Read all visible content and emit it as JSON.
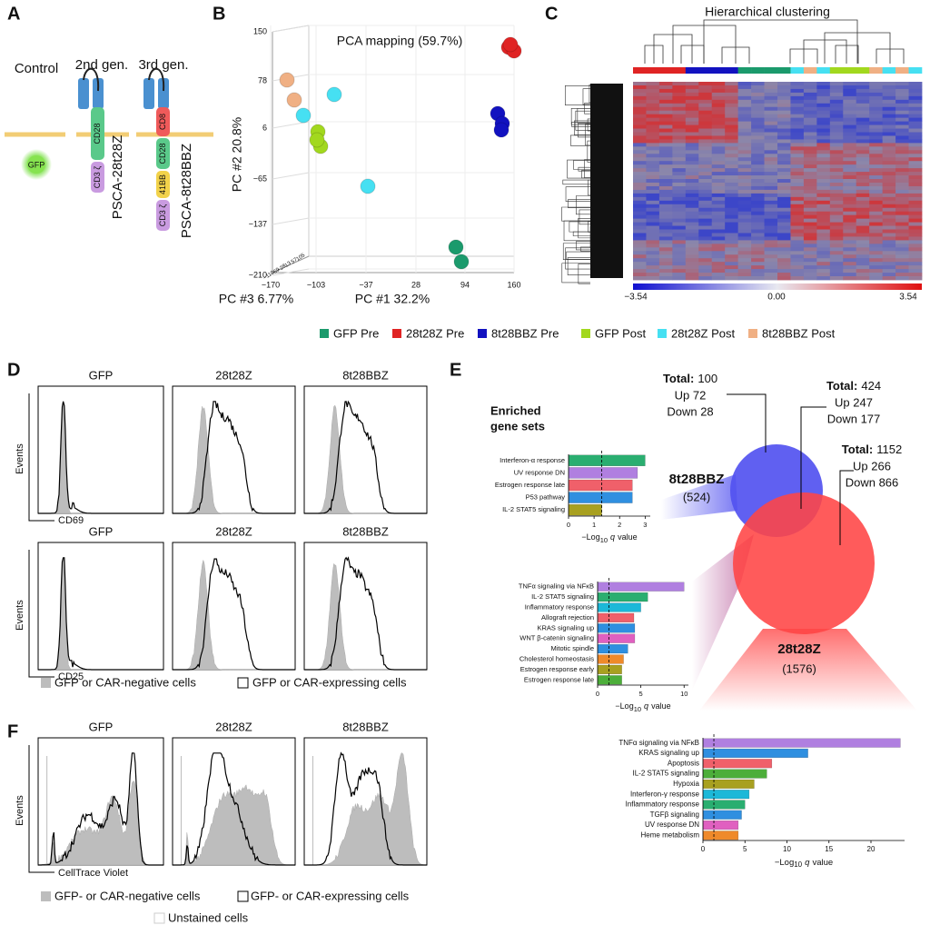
{
  "A": {
    "label": "A",
    "control": "Control",
    "gen2": "2nd gen.",
    "gen3": "3rd gen.",
    "gfp": "GFP",
    "cd28": "CD28",
    "cd3z": "CD3 ζ",
    "cd8": "CD8",
    "bb": "41BB",
    "name2": "PSCA-28t28Z",
    "name3": "PSCA-8t28BBZ"
  },
  "B": {
    "label": "B",
    "title": "PCA mapping (59.7%)",
    "y_axis": "PC #2 20.8%",
    "x_axis": "PC #1 32.2%",
    "z_axis": "PC #3 6.77%",
    "yticks": [
      "150",
      "78",
      "6",
      "−65",
      "−137",
      "−210"
    ],
    "xticks": [
      "−170",
      "−103",
      "−37",
      "28",
      "94",
      "160"
    ],
    "zticks": [
      "−110",
      "−69",
      "−28",
      "13",
      "57",
      "105"
    ]
  },
  "C": {
    "label": "C",
    "title": "Hierarchical clustering",
    "scale": [
      "−3.54",
      "0.00",
      "3.54"
    ]
  },
  "legend": [
    {
      "name": "GFP Pre",
      "color": "#1b9a6c"
    },
    {
      "name": "28t28Z Pre",
      "color": "#e02424"
    },
    {
      "name": "8t28BBZ Pre",
      "color": "#1212c0"
    },
    {
      "name": "GFP Post",
      "color": "#a2d81e"
    },
    {
      "name": "28t28Z Post",
      "color": "#46e0f2"
    },
    {
      "name": "8t28BBZ Post",
      "color": "#f0b084"
    }
  ],
  "D": {
    "label": "D",
    "columns": [
      "GFP",
      "28t28Z",
      "8t28BBZ"
    ],
    "y_axis": "Events",
    "rows": [
      "CD69",
      "CD25"
    ],
    "legend": [
      "GFP or CAR-negative cells",
      "GFP or CAR-expressing cells"
    ]
  },
  "E": {
    "label": "E",
    "enriched": [
      "Enriched",
      "gene sets"
    ],
    "venn": [
      {
        "total_label": "Total:",
        "total": "100",
        "up": "Up 72",
        "down": "Down 28"
      },
      {
        "total_label": "Total:",
        "total": "424",
        "up": "Up 247",
        "down": "Down 177"
      },
      {
        "total_label": "Total:",
        "total": "1152",
        "up": "Up 266",
        "down": "Down 866"
      }
    ],
    "sets": [
      {
        "name": "8t28BBZ",
        "count": "(524)"
      },
      {
        "name": "28t28Z",
        "count": "(1576)"
      }
    ],
    "charts": [
      {
        "categories": [
          "Interferon-α response",
          "UV response DN",
          "Estrogen response late",
          "P53 pathway",
          "IL-2 STAT5 signaling"
        ],
        "values": [
          3.0,
          2.7,
          2.5,
          2.5,
          1.3
        ],
        "colors": [
          "#2aae70",
          "#b07fe0",
          "#f0606a",
          "#2f8fe0",
          "#a8a020"
        ],
        "xlim": [
          0,
          3.2
        ],
        "xticks": [
          0,
          1,
          2,
          3
        ],
        "threshold": 1.3,
        "xlabel": {
          "pre": "−Log",
          "sub": "10",
          "q": "q",
          "post": "value"
        }
      },
      {
        "categories": [
          "TNFα signaling via NFκB",
          "IL-2 STAT5 signaling",
          "Inflammatory response",
          "Allograft rejection",
          "KRAS signaling up",
          "WNT β-catenin signaling",
          "Mitotic spindle",
          "Cholesterol homeostasis",
          "Estrogen response early",
          "Estrogen response late"
        ],
        "values": [
          10,
          5.8,
          5.0,
          4.2,
          4.3,
          4.3,
          3.5,
          3.0,
          2.8,
          2.8
        ],
        "colors": [
          "#b07fe0",
          "#2aae70",
          "#1cb8d8",
          "#f0606a",
          "#2f8fe0",
          "#e060c0",
          "#2f8fe0",
          "#ef8a2a",
          "#a8a020",
          "#4cae3a"
        ],
        "xlim": [
          0,
          10.5
        ],
        "xticks": [
          0,
          5,
          10
        ],
        "threshold": 1.3,
        "xlabel": {
          "pre": "−Log",
          "sub": "10",
          "q": "q",
          "post": "value"
        }
      },
      {
        "categories": [
          "TNFα signaling via NFκB",
          "KRAS signaling up",
          "Apoptosis",
          "IL-2 STAT5 signaling",
          "Hypoxia",
          "Interferon-γ response",
          "Inflammatory response",
          "TGFβ signaling",
          "UV response DN",
          "Heme metabolism"
        ],
        "values": [
          23.5,
          12.5,
          8.2,
          7.6,
          6.1,
          5.5,
          5.0,
          4.6,
          4.2,
          4.2
        ],
        "colors": [
          "#b07fe0",
          "#2f8fe0",
          "#f0606a",
          "#4cae3a",
          "#a8a020",
          "#1cb8d8",
          "#2aae70",
          "#2f8fe0",
          "#e060c0",
          "#ef8a2a"
        ],
        "xlim": [
          0,
          24
        ],
        "xticks": [
          0,
          5,
          10,
          15,
          20
        ],
        "threshold": 1.3,
        "xlabel": {
          "pre": "−Log",
          "sub": "10",
          "q": "q",
          "post": "value"
        }
      }
    ]
  },
  "F": {
    "label": "F",
    "columns": [
      "GFP",
      "28t28Z",
      "8t28BBZ"
    ],
    "y_axis": "Events",
    "x_axis": "CellTrace Violet",
    "legend": [
      "GFP- or CAR-negative cells",
      "GFP- or CAR-expressing cells",
      "Unstained cells"
    ]
  }
}
